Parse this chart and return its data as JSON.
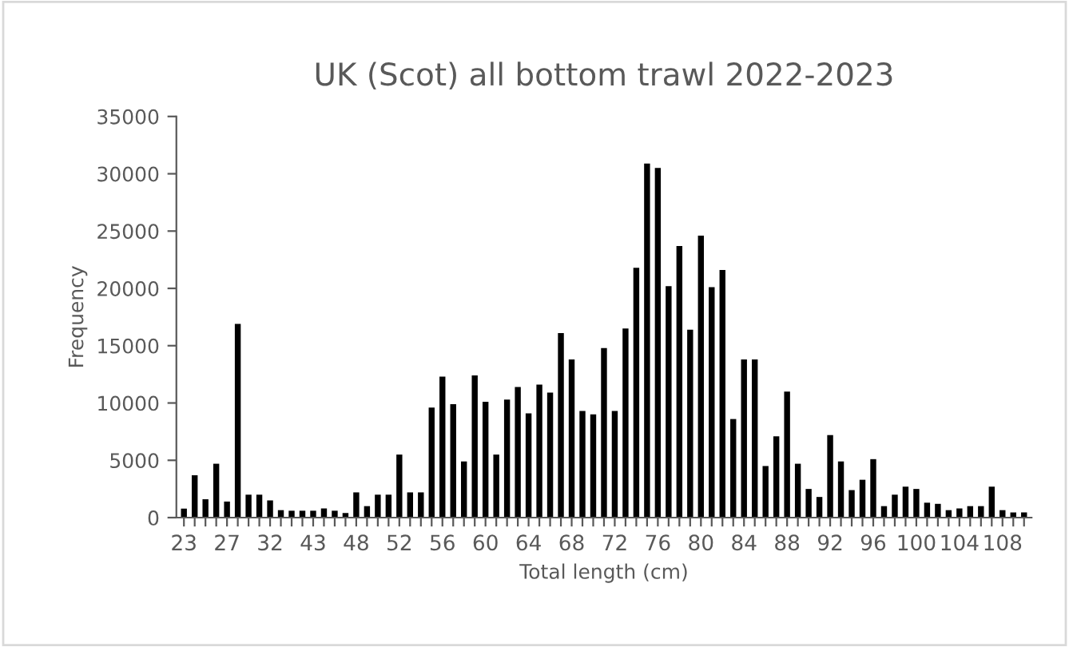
{
  "chart_data": {
    "type": "bar",
    "title": "UK (Scot) all bottom trawl 2022-2023",
    "xlabel": "Total length (cm)",
    "ylabel": "Frequency",
    "categories": [
      "23",
      null,
      null,
      null,
      "27",
      null,
      null,
      null,
      "32",
      null,
      null,
      null,
      "43",
      null,
      null,
      null,
      "48",
      null,
      null,
      null,
      "52",
      null,
      null,
      null,
      "56",
      null,
      null,
      null,
      "60",
      null,
      null,
      null,
      "64",
      null,
      null,
      null,
      "68",
      null,
      null,
      null,
      "72",
      null,
      null,
      null,
      "76",
      null,
      null,
      null,
      "80",
      null,
      null,
      null,
      "84",
      null,
      null,
      null,
      "88",
      null,
      null,
      null,
      "92",
      null,
      null,
      null,
      "96",
      null,
      null,
      null,
      "100",
      null,
      null,
      null,
      "104",
      null,
      null,
      null,
      "108",
      null,
      null
    ],
    "values": [
      790,
      3700,
      1600,
      4700,
      1400,
      16900,
      2000,
      2000,
      1500,
      650,
      600,
      600,
      600,
      800,
      600,
      400,
      2200,
      1000,
      2000,
      2000,
      5500,
      2200,
      2200,
      9600,
      12300,
      9900,
      4900,
      12400,
      10100,
      5500,
      10300,
      11400,
      9100,
      11600,
      10900,
      16100,
      13800,
      9300,
      9000,
      14800,
      9300,
      16500,
      21800,
      30900,
      30500,
      20200,
      23700,
      16400,
      24600,
      20100,
      21600,
      8600,
      13800,
      13800,
      4500,
      7100,
      11000,
      4700,
      2500,
      1800,
      7200,
      4900,
      2400,
      3300,
      5100,
      1000,
      2000,
      2700,
      2500,
      1300,
      1200,
      650,
      800,
      1000,
      1000,
      2700,
      650,
      450,
      450
    ],
    "color": "#000000",
    "ylim": [
      0,
      35000
    ],
    "yticks": [
      0,
      5000,
      10000,
      15000,
      20000,
      25000,
      30000,
      35000
    ],
    "grid": false,
    "legend": false
  }
}
